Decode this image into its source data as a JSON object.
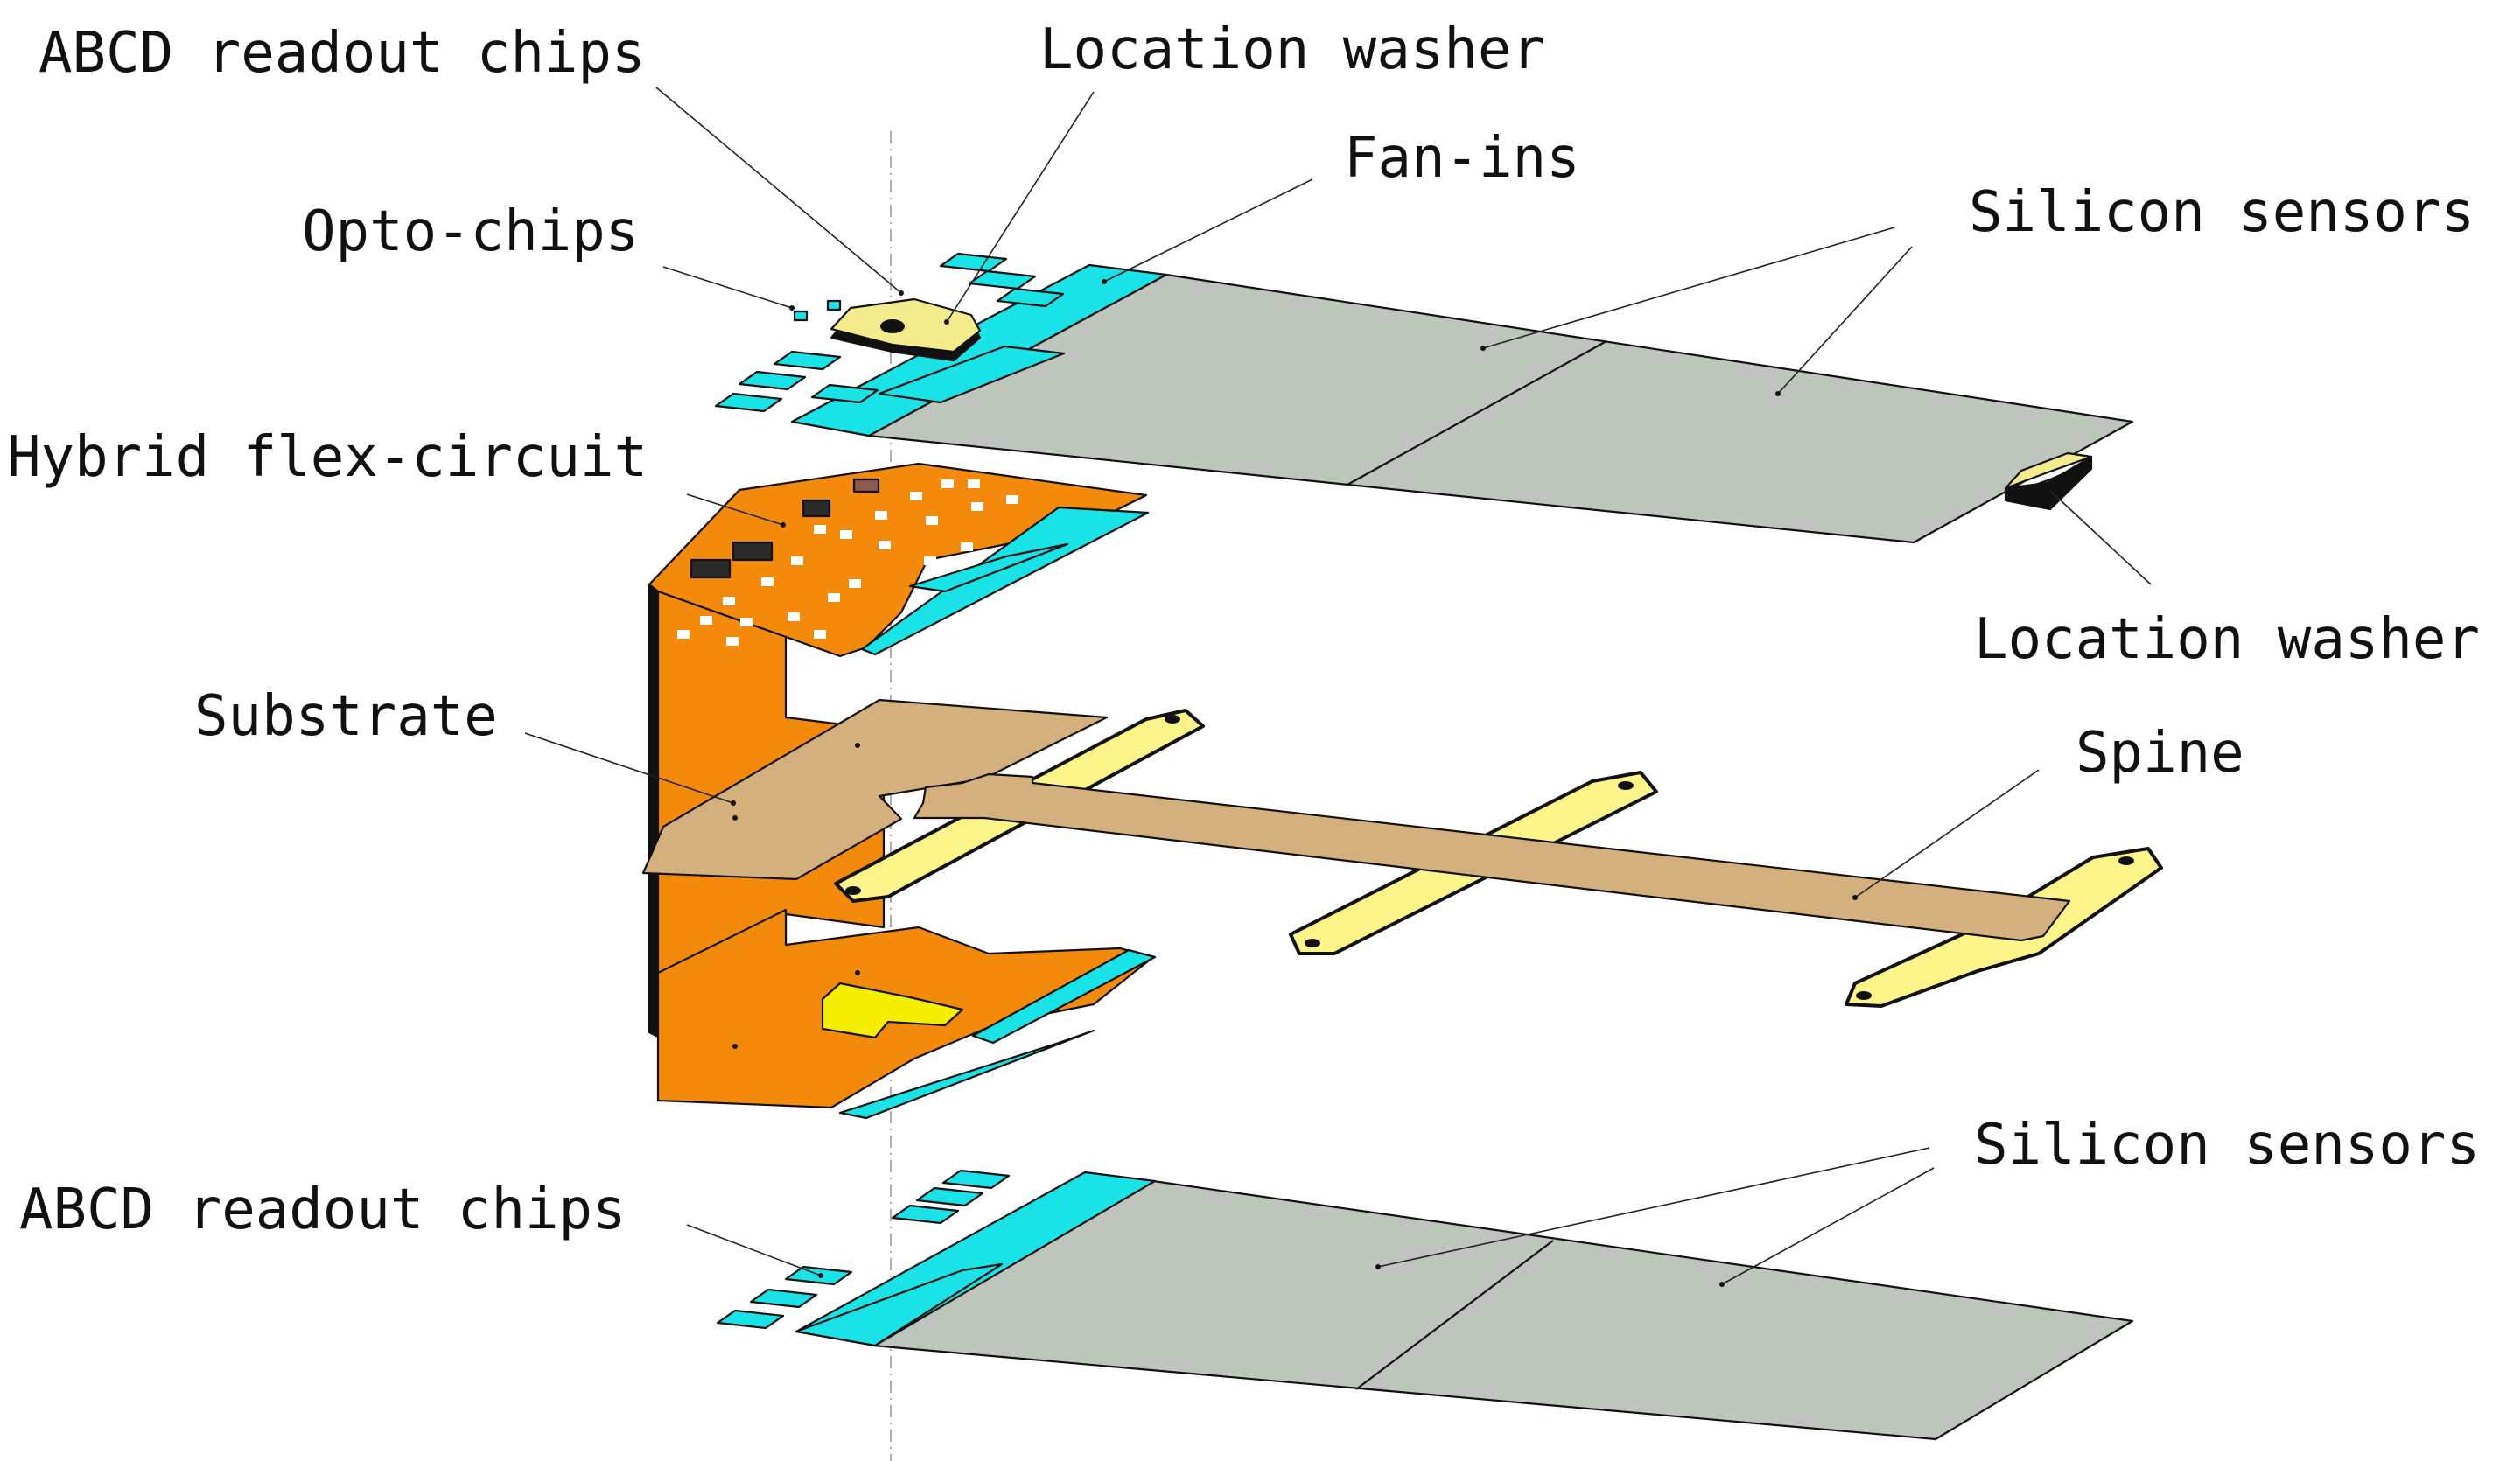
{
  "labels": {
    "abcd_top": "ABCD readout chips",
    "washer_top": "Location washer",
    "fanins": "Fan-ins",
    "opto": "Opto-chips",
    "silicon_top": "Silicon sensors",
    "hybrid": "Hybrid flex-circuit",
    "washer_right": "Location washer",
    "substrate": "Substrate",
    "spine": "Spine",
    "silicon_bottom": "Silicon sensors",
    "abcd_bottom": "ABCD readout chips"
  },
  "colors": {
    "sensor": "#bec5bd",
    "fanin": "#19e3e6",
    "flex": "#f48a0c",
    "substrate": "#d4b07e",
    "spine_arm": "#fdf48a",
    "washer": "#f3eb8c",
    "connector": "#f5ee00"
  }
}
